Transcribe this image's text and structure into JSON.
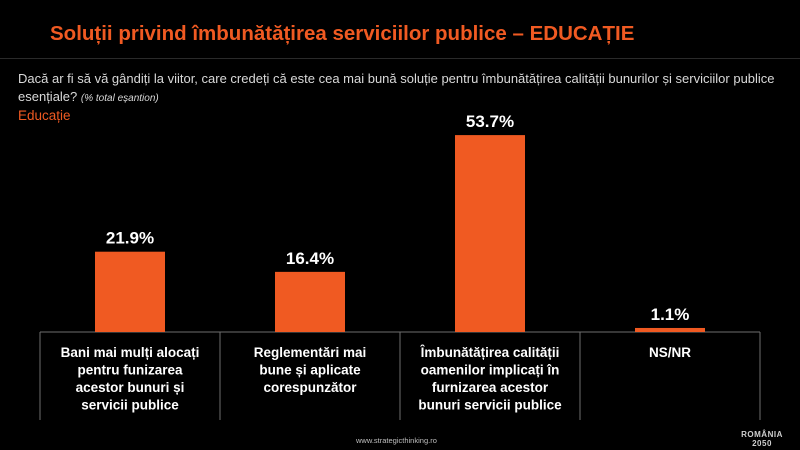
{
  "slide": {
    "title": "Soluții privind îmbunătățirea serviciilor publice – EDUCAȚIE",
    "question": "Dacă ar fi să vă gândiți la viitor, care credeți că este cea mai bună soluție pentru îmbunătățirea calității bunurilor și serviciilor publice esențiale?",
    "question_note": "(% total eșantion)",
    "subtitle": "Educație",
    "footer_url": "www.strategicthinking.ro",
    "logo_line1": "ROMÂNIA",
    "logo_line2": "2050"
  },
  "colors": {
    "accent": "#F05A22",
    "background": "#000000",
    "text": "#FFFFFF"
  },
  "chart_data": {
    "type": "bar",
    "title": "Educație",
    "categories": [
      "Bani mai mulți alocați pentru funizarea acestor bunuri și servicii publice",
      "Reglementări mai bune și aplicate corespunzător",
      "Îmbunătățirea calității oamenilor implicați în furnizarea acestor bunuri servicii publice",
      "NS/NR"
    ],
    "category_lines": [
      [
        "Bani mai mulți alocați",
        "pentru funizarea",
        "acestor bunuri și",
        "servicii publice"
      ],
      [
        "Reglementări mai",
        "bune și aplicate",
        "corespunzător"
      ],
      [
        "Îmbunătățirea calității",
        "oamenilor implicați în",
        "furnizarea acestor",
        "bunuri servicii publice"
      ],
      [
        "NS/NR"
      ]
    ],
    "values": [
      21.9,
      16.4,
      53.7,
      1.1
    ],
    "value_labels": [
      "21.9%",
      "16.4%",
      "53.7%",
      "1.1%"
    ],
    "unit": "%",
    "ylim": [
      0,
      60
    ],
    "xlabel": "",
    "ylabel": "",
    "grid": false,
    "legend": "none"
  }
}
